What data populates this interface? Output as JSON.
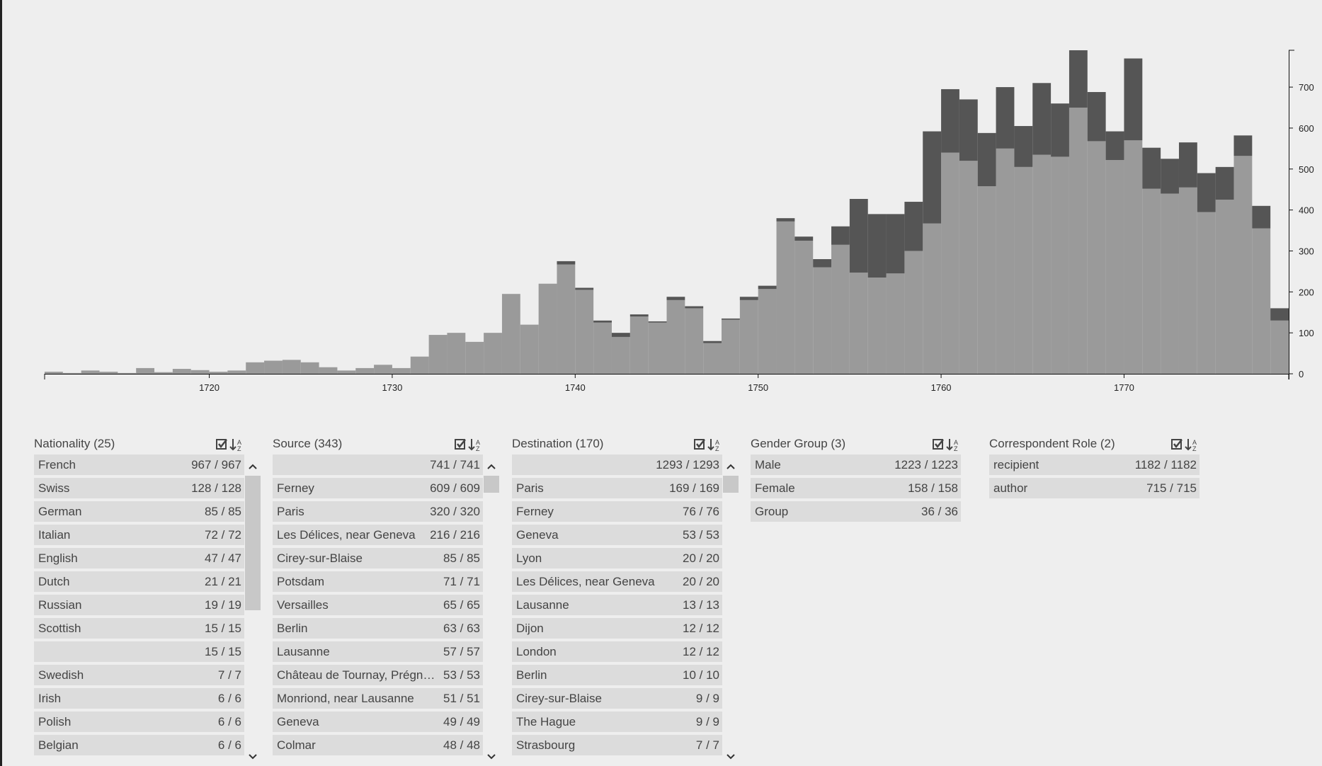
{
  "chart_data": {
    "type": "histogram",
    "stacked": true,
    "bins": [
      1711,
      1712,
      1713,
      1714,
      1715,
      1716,
      1717,
      1718,
      1719,
      1720,
      1721,
      1722,
      1723,
      1724,
      1725,
      1726,
      1727,
      1728,
      1729,
      1730,
      1731,
      1732,
      1733,
      1734,
      1735,
      1736,
      1737,
      1738,
      1739,
      1740,
      1741,
      1742,
      1743,
      1744,
      1745,
      1746,
      1747,
      1748,
      1749,
      1750,
      1751,
      1752,
      1753,
      1754,
      1755,
      1756,
      1757,
      1758,
      1759,
      1760,
      1761,
      1762,
      1763,
      1764,
      1765,
      1766,
      1767,
      1768,
      1769,
      1770,
      1771,
      1772,
      1773,
      1774,
      1775,
      1776,
      1777,
      1778,
      1779
    ],
    "series": [
      {
        "color": "#9a9a9a",
        "values": [
          5,
          2,
          8,
          5,
          2,
          14,
          4,
          12,
          9,
          5,
          8,
          28,
          32,
          34,
          28,
          16,
          8,
          14,
          22,
          14,
          42,
          95,
          100,
          78,
          100,
          195,
          120,
          220,
          267,
          205,
          125,
          90,
          140,
          125,
          180,
          160,
          75,
          132,
          180,
          207,
          372,
          325,
          260,
          315,
          247,
          235,
          245,
          300,
          367,
          540,
          520,
          458,
          550,
          505,
          535,
          530,
          650,
          568,
          522,
          570,
          452,
          440,
          455,
          395,
          425,
          532,
          355,
          130
        ]
      },
      {
        "color": "#555555",
        "values": [
          0,
          0,
          0,
          0,
          0,
          0,
          0,
          0,
          0,
          0,
          0,
          0,
          0,
          0,
          0,
          0,
          0,
          0,
          0,
          0,
          0,
          0,
          0,
          0,
          0,
          0,
          0,
          0,
          8,
          5,
          5,
          10,
          5,
          3,
          8,
          5,
          5,
          3,
          8,
          8,
          8,
          10,
          20,
          45,
          180,
          155,
          145,
          120,
          225,
          155,
          150,
          130,
          150,
          100,
          175,
          130,
          140,
          120,
          70,
          200,
          100,
          85,
          110,
          95,
          80,
          50,
          55,
          30
        ]
      }
    ],
    "xlim": [
      1711,
      1779
    ],
    "xticks": [
      1720,
      1730,
      1740,
      1750,
      1760,
      1770
    ],
    "ylim": [
      0,
      790
    ],
    "yticks": [
      0,
      100,
      200,
      300,
      400,
      500,
      600,
      700
    ]
  },
  "facets": [
    {
      "title": "Nationality (25)",
      "scroll": true,
      "rows": [
        {
          "label": "French",
          "count": "967 / 967"
        },
        {
          "label": "Swiss",
          "count": "128 / 128"
        },
        {
          "label": "German",
          "count": "85 / 85"
        },
        {
          "label": "Italian",
          "count": "72 / 72"
        },
        {
          "label": "English",
          "count": "47 / 47"
        },
        {
          "label": "Dutch",
          "count": "21 / 21"
        },
        {
          "label": "Russian",
          "count": "19 / 19"
        },
        {
          "label": "Scottish",
          "count": "15 / 15"
        },
        {
          "label": null,
          "count": "15 / 15"
        },
        {
          "label": "Swedish",
          "count": "7 / 7"
        },
        {
          "label": "Irish",
          "count": "6 / 6"
        },
        {
          "label": "Polish",
          "count": "6 / 6"
        },
        {
          "label": "Belgian",
          "count": "6 / 6"
        }
      ]
    },
    {
      "title": "Source (343)",
      "scroll": true,
      "rows": [
        {
          "label": null,
          "count": "741 / 741"
        },
        {
          "label": "Ferney",
          "count": "609 / 609"
        },
        {
          "label": "Paris",
          "count": "320 / 320"
        },
        {
          "label": "Les Délices, near Geneva",
          "count": "216 / 216"
        },
        {
          "label": "Cirey-sur-Blaise",
          "count": "85 / 85"
        },
        {
          "label": "Potsdam",
          "count": "71 / 71"
        },
        {
          "label": "Versailles",
          "count": "65 / 65"
        },
        {
          "label": "Berlin",
          "count": "63 / 63"
        },
        {
          "label": "Lausanne",
          "count": "57 / 57"
        },
        {
          "label": "Château de Tournay, Prégn…",
          "count": "53 / 53"
        },
        {
          "label": "Monriond, near Lausanne",
          "count": "51 / 51"
        },
        {
          "label": "Geneva",
          "count": "49 / 49"
        },
        {
          "label": "Colmar",
          "count": "48 / 48"
        }
      ]
    },
    {
      "title": "Destination (170)",
      "scroll": true,
      "rows": [
        {
          "label": null,
          "count": "1293 / 1293"
        },
        {
          "label": "Paris",
          "count": "169 / 169"
        },
        {
          "label": "Ferney",
          "count": "76 / 76"
        },
        {
          "label": "Geneva",
          "count": "53 / 53"
        },
        {
          "label": "Lyon",
          "count": "20 / 20"
        },
        {
          "label": "Les Délices, near Geneva",
          "count": "20 / 20"
        },
        {
          "label": "Lausanne",
          "count": "13 / 13"
        },
        {
          "label": "Dijon",
          "count": "12 / 12"
        },
        {
          "label": "London",
          "count": "12 / 12"
        },
        {
          "label": "Berlin",
          "count": "10 / 10"
        },
        {
          "label": "Cirey-sur-Blaise",
          "count": "9 / 9"
        },
        {
          "label": "The Hague",
          "count": "9 / 9"
        },
        {
          "label": "Strasbourg",
          "count": "7 / 7"
        }
      ]
    },
    {
      "title": "Gender Group (3)",
      "scroll": false,
      "rows": [
        {
          "label": "Male",
          "count": "1223 / 1223"
        },
        {
          "label": "Female",
          "count": "158 / 158"
        },
        {
          "label": "Group",
          "count": "36 / 36"
        }
      ]
    },
    {
      "title": "Correspondent Role (2)",
      "scroll": false,
      "rows": [
        {
          "label": "recipient",
          "count": "1182 / 1182"
        },
        {
          "label": "author",
          "count": "715 / 715"
        }
      ]
    }
  ]
}
